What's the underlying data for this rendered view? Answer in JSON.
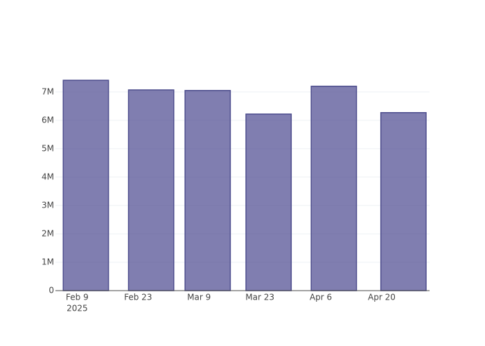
{
  "chart_data": {
    "type": "bar",
    "x": [
      "2025-02-11",
      "2025-02-26",
      "2025-03-11",
      "2025-03-25",
      "2025-04-09",
      "2025-04-25"
    ],
    "values": [
      7410000,
      7070000,
      7050000,
      6220000,
      7200000,
      6270000
    ],
    "color": "rgba(85,83,150,0.75)",
    "line_color": "#4c4c8c",
    "xlim": [
      "2025-02-04",
      "2025-05-01"
    ],
    "xticks": [
      {
        "value": "2025-02-09",
        "label": "Feb 9",
        "sublabel": "2025"
      },
      {
        "value": "2025-02-23",
        "label": "Feb 23"
      },
      {
        "value": "2025-03-09",
        "label": "Mar 9"
      },
      {
        "value": "2025-03-23",
        "label": "Mar 23"
      },
      {
        "value": "2025-04-06",
        "label": "Apr 6"
      },
      {
        "value": "2025-04-20",
        "label": "Apr 20"
      }
    ],
    "ylim": [
      0,
      7800000
    ],
    "yticks": [
      0,
      {
        "value": 1000000,
        "label": "1M"
      },
      {
        "value": 2000000,
        "label": "2M"
      },
      {
        "value": 3000000,
        "label": "3M"
      },
      {
        "value": 4000000,
        "label": "4M"
      },
      {
        "value": 5000000,
        "label": "5M"
      },
      {
        "value": 6000000,
        "label": "6M"
      },
      {
        "value": 7000000,
        "label": "7M"
      }
    ],
    "grid": true
  }
}
